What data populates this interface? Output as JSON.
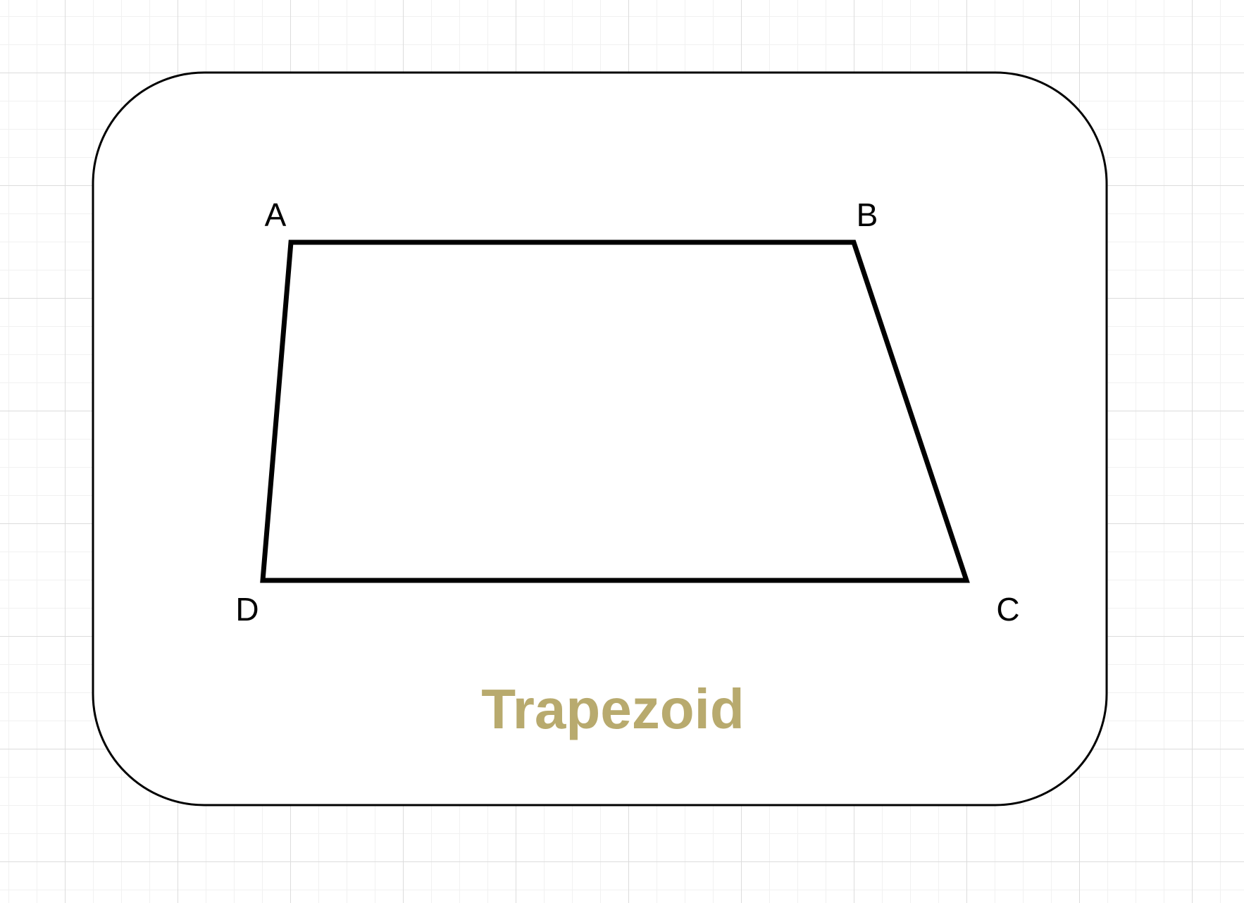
{
  "diagram": {
    "title": "Trapezoid",
    "title_color": "#B8AA6E",
    "stroke_color": "#000000",
    "card_fill": "#ffffff",
    "vertices": {
      "a": "A",
      "b": "B",
      "c": "C",
      "d": "D"
    }
  }
}
